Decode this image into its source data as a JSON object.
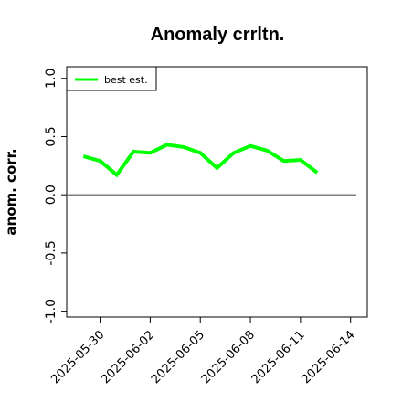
{
  "chart_data": {
    "type": "line",
    "title": "Anomaly crrltn.",
    "xlabel": "",
    "ylabel": "anom. corr.",
    "x": [
      "2025-05-29",
      "2025-05-30",
      "2025-05-31",
      "2025-06-01",
      "2025-06-02",
      "2025-06-03",
      "2025-06-04",
      "2025-06-05",
      "2025-06-06",
      "2025-06-07",
      "2025-06-08",
      "2025-06-09",
      "2025-06-10",
      "2025-06-11",
      "2025-06-12"
    ],
    "xlim": [
      "2025-05-28",
      "2025-06-15"
    ],
    "ylim": [
      -1.05,
      1.1
    ],
    "x_ticks": [
      "2025-05-30",
      "2025-06-02",
      "2025-06-05",
      "2025-06-08",
      "2025-06-11",
      "2025-06-14"
    ],
    "y_ticks": [
      "-1.0",
      "-0.5",
      "0.0",
      "0.5",
      "1.0"
    ],
    "series": [
      {
        "name": "best est.",
        "color": "#00ff00",
        "values": [
          0.33,
          0.29,
          0.17,
          0.37,
          0.36,
          0.43,
          0.41,
          0.36,
          0.23,
          0.36,
          0.42,
          0.38,
          0.29,
          0.3,
          0.19
        ]
      }
    ],
    "reference_line": {
      "y": 0.0,
      "color": "#555555"
    },
    "grid": false,
    "legend": "top-left"
  }
}
